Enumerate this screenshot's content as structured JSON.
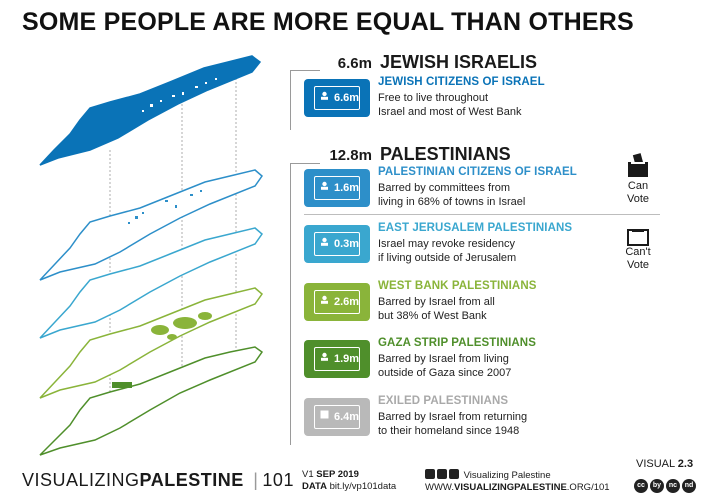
{
  "title": "SOME PEOPLE ARE MORE EQUAL THAN OTHERS",
  "colors": {
    "jewish": "#0a73b7",
    "citizens": "#2d8fc9",
    "jerusalem": "#3aa7cf",
    "westbank": "#8ab43a",
    "gaza": "#4f8f2b",
    "exiled": "#b9b9b9"
  },
  "groups": [
    {
      "total": "6.6m",
      "name": "JEWISH ISRAELIS"
    },
    {
      "total": "12.8m",
      "name": "PALESTINIANS"
    }
  ],
  "cards": [
    {
      "value": "6.6m",
      "title": "JEWISH CITIZENS OF ISRAEL",
      "line1": "Free to live throughout",
      "line2": "Israel and most of West Bank",
      "color": "#0a73b7",
      "icon": "id-card-icon"
    },
    {
      "value": "1.6m",
      "title": "PALESTINIAN CITIZENS OF ISRAEL",
      "line1": "Barred by committees from",
      "line2": "living in 68% of towns in Israel",
      "color": "#2d8fc9",
      "icon": "id-card-icon"
    },
    {
      "value": "0.3m",
      "title": "EAST JERUSALEM PALESTINIANS",
      "line1": "Israel may revoke residency",
      "line2": "if living outside of Jerusalem",
      "color": "#3aa7cf",
      "icon": "id-card-icon"
    },
    {
      "value": "2.6m",
      "title": "WEST BANK PALESTINIANS",
      "line1": "Barred by Israel from all",
      "line2": "but 38% of West Bank",
      "color": "#8ab43a",
      "icon": "id-card-icon"
    },
    {
      "value": "1.9m",
      "title": "GAZA STRIP PALESTINIANS",
      "line1": "Barred by Israel from living",
      "line2": "outside of Gaza since 2007",
      "color": "#4f8f2b",
      "icon": "id-card-icon"
    },
    {
      "value": "6.4m",
      "title": "EXILED PALESTINIANS",
      "line1": "Barred by Israel from returning",
      "line2": "to their homeland since 1948",
      "color": "#b9b9b9",
      "icon": "id-card-icon"
    }
  ],
  "vote": {
    "can_line1": "Can",
    "can_line2": "Vote",
    "cant_line1": "Can't",
    "cant_line2": "Vote"
  },
  "footer": {
    "brand_light": "VISUALIZING",
    "brand_bold": "PALESTINE",
    "brand_num": "101",
    "version_prefix": "V1",
    "version_date": "SEP 2019",
    "data_label": "DATA",
    "data_link": "bit.ly/vp101data",
    "social_name": "Visualizing Palestine",
    "site_prefix": "WWW.",
    "site_bold": "VISUALIZINGPALESTINE",
    "site_suffix": ".ORG/101",
    "visual_label": "VISUAL",
    "visual_num": "2.3",
    "cc_icons": [
      "cc",
      "by",
      "nc",
      "nd"
    ]
  }
}
